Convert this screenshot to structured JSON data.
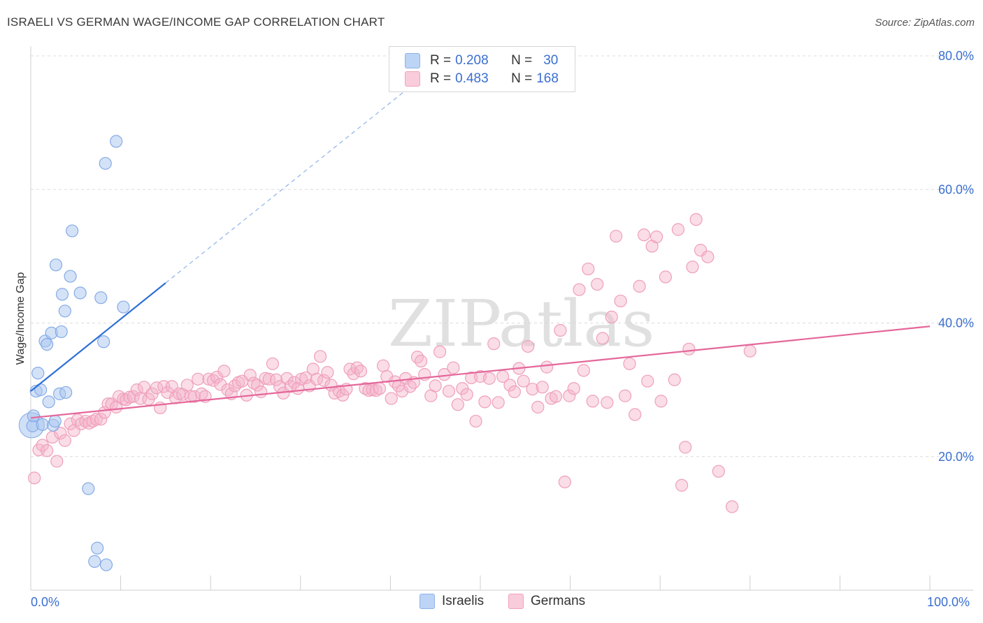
{
  "title": "ISRAELI VS GERMAN WAGE/INCOME GAP CORRELATION CHART",
  "source": "Source: ZipAtlas.com",
  "watermark": "ZIPatlas",
  "legend_top": {
    "rows": [
      {
        "r_label": "R = ",
        "r_value": "0.208",
        "n_label": "N = ",
        "n_value": "30",
        "color": "#a9c6f0"
      },
      {
        "r_label": "R = ",
        "r_value": "0.483",
        "n_label": "N = ",
        "n_value": "168",
        "color": "#f5b8cb"
      }
    ]
  },
  "legend_bottom": {
    "israelis": "Israelis",
    "germans": "Germans"
  },
  "chart_data": {
    "type": "scatter",
    "ylabel": "Wage/Income Gap",
    "xlim": [
      0,
      100
    ],
    "ylim": [
      0,
      80
    ],
    "x_tick_labels": [
      "0.0%",
      "100.0%"
    ],
    "y_ticks": [
      20,
      40,
      60,
      80
    ],
    "y_tick_labels": [
      "20.0%",
      "40.0%",
      "60.0%",
      "80.0%"
    ],
    "grid": "horizontal dashed",
    "colors": {
      "israelis": "#7aa6e6",
      "germans": "#f08db0",
      "israelis_line": "#2d6fd6",
      "germans_line": "#e4679a",
      "axis_text": "#3a6fd0"
    },
    "series": [
      {
        "name": "Israelis",
        "trend": {
          "x0": 0,
          "y0": 29.8,
          "x1": 15,
          "y1": 46,
          "dashed_to_x": 42
        },
        "points": [
          [
            0.2,
            24.6
          ],
          [
            0.3,
            26.1
          ],
          [
            0.6,
            29.8
          ],
          [
            0.8,
            32.5
          ],
          [
            1.1,
            30.0
          ],
          [
            1.3,
            24.8
          ],
          [
            1.6,
            37.3
          ],
          [
            1.8,
            36.8
          ],
          [
            2.0,
            28.2
          ],
          [
            2.3,
            38.5
          ],
          [
            2.5,
            24.7
          ],
          [
            2.7,
            25.3
          ],
          [
            2.8,
            48.7
          ],
          [
            3.2,
            29.4
          ],
          [
            3.4,
            38.7
          ],
          [
            3.5,
            44.3
          ],
          [
            3.8,
            41.8
          ],
          [
            3.9,
            29.6
          ],
          [
            4.4,
            47.0
          ],
          [
            4.6,
            53.8
          ],
          [
            5.5,
            44.5
          ],
          [
            6.4,
            15.2
          ],
          [
            7.1,
            4.3
          ],
          [
            7.4,
            6.3
          ],
          [
            7.8,
            43.8
          ],
          [
            8.1,
            37.2
          ],
          [
            8.3,
            63.9
          ],
          [
            8.4,
            3.8
          ],
          [
            9.5,
            67.2
          ],
          [
            10.3,
            42.4
          ]
        ],
        "big_point": [
          0.1,
          24.7
        ]
      },
      {
        "name": "Germans",
        "trend": {
          "x0": 0,
          "y0": 25.8,
          "x1": 100,
          "y1": 39.5
        },
        "points": [
          [
            0.4,
            16.8
          ],
          [
            0.9,
            21.0
          ],
          [
            1.3,
            21.7
          ],
          [
            1.8,
            20.9
          ],
          [
            2.4,
            22.9
          ],
          [
            2.9,
            19.3
          ],
          [
            3.3,
            23.5
          ],
          [
            3.8,
            22.4
          ],
          [
            4.4,
            24.9
          ],
          [
            4.8,
            23.9
          ],
          [
            5.2,
            25.5
          ],
          [
            5.6,
            24.9
          ],
          [
            6.1,
            25.3
          ],
          [
            6.5,
            25.0
          ],
          [
            6.9,
            25.3
          ],
          [
            7.3,
            25.6
          ],
          [
            7.8,
            25.6
          ],
          [
            8.2,
            26.6
          ],
          [
            8.6,
            27.9
          ],
          [
            9.0,
            27.9
          ],
          [
            9.5,
            27.4
          ],
          [
            9.8,
            29.0
          ],
          [
            10.3,
            28.6
          ],
          [
            10.6,
            28.5
          ],
          [
            11.0,
            28.9
          ],
          [
            11.4,
            29.0
          ],
          [
            11.8,
            30.0
          ],
          [
            12.2,
            28.7
          ],
          [
            12.6,
            30.4
          ],
          [
            13.1,
            28.6
          ],
          [
            13.5,
            29.4
          ],
          [
            14.0,
            30.3
          ],
          [
            14.4,
            27.3
          ],
          [
            14.8,
            30.5
          ],
          [
            15.2,
            29.6
          ],
          [
            15.7,
            30.5
          ],
          [
            16.1,
            28.8
          ],
          [
            16.5,
            29.4
          ],
          [
            16.9,
            29.3
          ],
          [
            17.4,
            30.7
          ],
          [
            17.8,
            29.0
          ],
          [
            18.2,
            29.0
          ],
          [
            18.6,
            31.6
          ],
          [
            19.0,
            29.4
          ],
          [
            19.4,
            29.0
          ],
          [
            19.8,
            31.6
          ],
          [
            20.3,
            31.4
          ],
          [
            20.7,
            31.9
          ],
          [
            21.1,
            30.8
          ],
          [
            21.5,
            32.8
          ],
          [
            21.9,
            30.0
          ],
          [
            22.3,
            29.4
          ],
          [
            22.7,
            30.6
          ],
          [
            23.1,
            31.1
          ],
          [
            23.5,
            31.3
          ],
          [
            24.0,
            29.2
          ],
          [
            24.4,
            32.2
          ],
          [
            24.8,
            31.0
          ],
          [
            25.2,
            30.7
          ],
          [
            25.6,
            29.7
          ],
          [
            26.1,
            31.7
          ],
          [
            26.5,
            31.6
          ],
          [
            26.9,
            33.9
          ],
          [
            27.3,
            31.5
          ],
          [
            27.7,
            30.5
          ],
          [
            28.1,
            29.5
          ],
          [
            28.5,
            31.7
          ],
          [
            28.9,
            30.5
          ],
          [
            29.3,
            31.1
          ],
          [
            29.7,
            30.2
          ],
          [
            30.1,
            31.6
          ],
          [
            30.6,
            31.8
          ],
          [
            31.0,
            30.6
          ],
          [
            31.4,
            33.1
          ],
          [
            31.8,
            31.6
          ],
          [
            32.2,
            35.0
          ],
          [
            32.6,
            31.4
          ],
          [
            33.0,
            32.6
          ],
          [
            33.4,
            30.7
          ],
          [
            33.8,
            29.5
          ],
          [
            34.3,
            29.8
          ],
          [
            34.7,
            29.2
          ],
          [
            35.1,
            30.1
          ],
          [
            35.5,
            33.1
          ],
          [
            35.9,
            32.4
          ],
          [
            36.3,
            33.3
          ],
          [
            36.7,
            32.8
          ],
          [
            37.2,
            30.2
          ],
          [
            37.6,
            29.9
          ],
          [
            38.0,
            30.0
          ],
          [
            38.4,
            29.9
          ],
          [
            38.8,
            30.2
          ],
          [
            39.2,
            33.6
          ],
          [
            39.6,
            32.0
          ],
          [
            40.1,
            28.7
          ],
          [
            40.5,
            31.2
          ],
          [
            40.9,
            30.6
          ],
          [
            41.3,
            29.8
          ],
          [
            41.7,
            31.7
          ],
          [
            42.2,
            30.5
          ],
          [
            42.6,
            31.1
          ],
          [
            43.0,
            34.9
          ],
          [
            43.4,
            34.3
          ],
          [
            43.8,
            32.3
          ],
          [
            44.5,
            29.1
          ],
          [
            45.0,
            30.6
          ],
          [
            45.5,
            35.7
          ],
          [
            46.0,
            32.3
          ],
          [
            46.5,
            29.8
          ],
          [
            47.0,
            33.3
          ],
          [
            47.5,
            27.8
          ],
          [
            48.0,
            30.2
          ],
          [
            48.5,
            29.3
          ],
          [
            49.0,
            31.8
          ],
          [
            49.5,
            25.3
          ],
          [
            50.0,
            32.0
          ],
          [
            50.5,
            28.2
          ],
          [
            51.0,
            31.7
          ],
          [
            51.5,
            36.9
          ],
          [
            52.0,
            28.1
          ],
          [
            52.5,
            32.0
          ],
          [
            53.3,
            30.7
          ],
          [
            53.8,
            29.7
          ],
          [
            54.3,
            33.2
          ],
          [
            54.8,
            31.3
          ],
          [
            55.3,
            36.5
          ],
          [
            55.8,
            30.1
          ],
          [
            56.4,
            27.4
          ],
          [
            56.9,
            30.4
          ],
          [
            57.4,
            33.4
          ],
          [
            57.9,
            28.7
          ],
          [
            58.4,
            29.0
          ],
          [
            58.9,
            38.9
          ],
          [
            59.4,
            16.2
          ],
          [
            59.9,
            29.1
          ],
          [
            60.4,
            30.2
          ],
          [
            61.0,
            45.0
          ],
          [
            61.5,
            32.9
          ],
          [
            62.0,
            48.1
          ],
          [
            62.5,
            28.3
          ],
          [
            63.0,
            45.8
          ],
          [
            63.6,
            37.7
          ],
          [
            64.1,
            28.1
          ],
          [
            64.6,
            40.9
          ],
          [
            65.1,
            53.0
          ],
          [
            65.6,
            43.3
          ],
          [
            66.1,
            29.1
          ],
          [
            66.6,
            33.9
          ],
          [
            67.2,
            26.3
          ],
          [
            67.7,
            45.5
          ],
          [
            68.2,
            53.2
          ],
          [
            68.6,
            31.3
          ],
          [
            69.1,
            51.5
          ],
          [
            69.6,
            52.9
          ],
          [
            70.1,
            28.3
          ],
          [
            70.6,
            46.9
          ],
          [
            71.6,
            31.5
          ],
          [
            72.0,
            54.0
          ],
          [
            72.4,
            15.7
          ],
          [
            72.8,
            21.4
          ],
          [
            73.2,
            36.1
          ],
          [
            73.6,
            48.4
          ],
          [
            74.0,
            55.5
          ],
          [
            74.5,
            50.9
          ],
          [
            75.3,
            49.9
          ],
          [
            76.5,
            17.8
          ],
          [
            78.0,
            12.5
          ],
          [
            80.0,
            35.8
          ]
        ]
      }
    ]
  }
}
